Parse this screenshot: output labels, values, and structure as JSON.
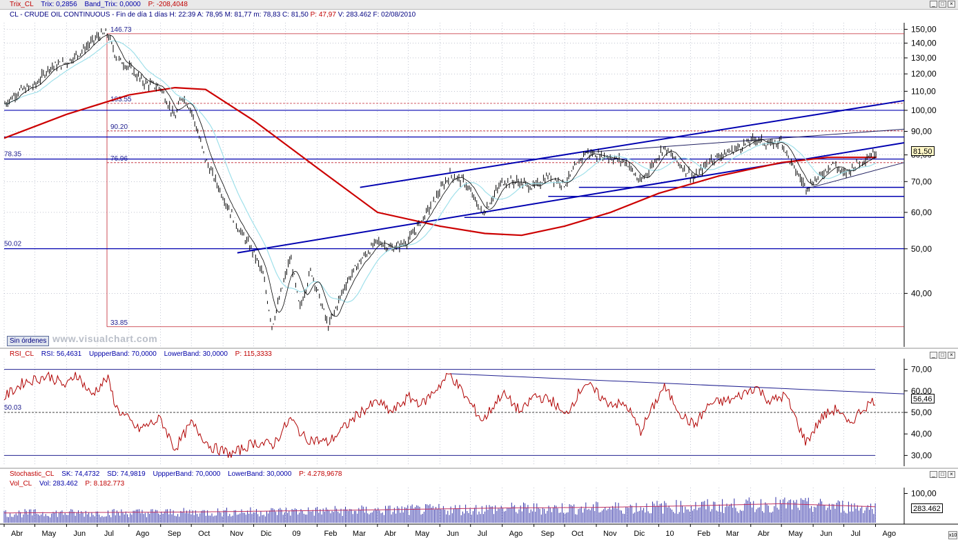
{
  "colors": {
    "price": "#000000",
    "trix_signal": "#9fe0ea",
    "long_ma": "#cc0000",
    "trend": "#0000b0",
    "rsi": "#b00000",
    "volume": "#3030a8",
    "support": "#0000b0",
    "level": "#c0202c"
  },
  "icons": {
    "scroll_up": "arrow-up-icon",
    "minimize": "minimize-icon",
    "restore": "restore-icon",
    "close": "close-icon",
    "zoom": "zoom-x10-icon"
  },
  "window_buttons": {
    "minimize": "_",
    "restore": "□",
    "close": "×"
  },
  "header_trix": {
    "name": "Trix_CL",
    "p1": "Trix: 0,2856",
    "p2": "Band_Trix: 0,0000",
    "p3": "P: -208,4048"
  },
  "subheader": {
    "symbol": "CL - CRUDE OIL CONTINUOUS - Fin de día 1 días",
    "h": "H: 22:39",
    "a": "A: 78,95",
    "m1": "M: 81,77",
    "m2": "m: 78,83",
    "c": "C: 81,50",
    "p": "P: 47,97",
    "v": "V: 283.462",
    "f": "F: 02/08/2010"
  },
  "header_rsi": {
    "name": "RSI_CL",
    "p1": "RSI: 56,4631",
    "p2": "UppperBand: 70,0000",
    "p3": "LowerBand: 30,0000",
    "p4": "P: 115,3333"
  },
  "header_stoch": {
    "name": "Stochastic_CL",
    "p1": "SK: 74,4732",
    "p2": "SD: 74,9819",
    "p3": "UppperBand: 70,0000",
    "p4": "LowerBand: 30,0000",
    "p5": "P: 4.278,9678"
  },
  "header_vol": {
    "name": "Vol_CL",
    "p1": "Vol: 283.462",
    "p2": "P: 8.182.773"
  },
  "sin_ordenes": "Sin órdenes",
  "watermark": "www.visualchart.com",
  "zoom_label": "x10",
  "chart_data": [
    {
      "type": "line",
      "title": "CL - CRUDE OIL CONTINUOUS",
      "y_scale": "log",
      "ylim": [
        30.6,
        155
      ],
      "y_ticks": [
        {
          "v": 150,
          "label": "150,00"
        },
        {
          "v": 140,
          "label": "140,00"
        },
        {
          "v": 130,
          "label": "130,00"
        },
        {
          "v": 120,
          "label": "120,00"
        },
        {
          "v": 110,
          "label": "110,00"
        },
        {
          "v": 100,
          "label": "100,00"
        },
        {
          "v": 90,
          "label": "90,00"
        },
        {
          "v": 80,
          "label": "80,00"
        },
        {
          "v": 70,
          "label": "70,00"
        },
        {
          "v": 60,
          "label": "60,00"
        },
        {
          "v": 50,
          "label": "50,00"
        },
        {
          "v": 40,
          "label": "40,00"
        }
      ],
      "last_price": {
        "value": 81.5,
        "label": "81,50"
      },
      "price_path": [
        [
          "2008-04-01",
          103
        ],
        [
          "2008-04-15",
          110
        ],
        [
          "2008-05-01",
          113
        ],
        [
          "2008-05-15",
          124
        ],
        [
          "2008-06-01",
          127
        ],
        [
          "2008-06-15",
          134
        ],
        [
          "2008-07-03",
          145.5
        ],
        [
          "2008-07-11",
          146.73
        ],
        [
          "2008-07-20",
          130
        ],
        [
          "2008-08-01",
          124
        ],
        [
          "2008-08-15",
          115
        ],
        [
          "2008-09-01",
          112
        ],
        [
          "2008-09-15",
          96
        ],
        [
          "2008-09-22",
          108
        ],
        [
          "2008-10-01",
          100
        ],
        [
          "2008-10-15",
          78
        ],
        [
          "2008-11-01",
          65
        ],
        [
          "2008-11-15",
          56
        ],
        [
          "2008-12-01",
          49
        ],
        [
          "2008-12-10",
          44
        ],
        [
          "2008-12-19",
          33.9
        ],
        [
          "2009-01-06",
          48
        ],
        [
          "2009-01-15",
          37
        ],
        [
          "2009-01-26",
          45
        ],
        [
          "2009-02-12",
          33.85
        ],
        [
          "2009-03-01",
          42
        ],
        [
          "2009-03-15",
          47
        ],
        [
          "2009-04-01",
          52
        ],
        [
          "2009-04-15",
          50
        ],
        [
          "2009-05-01",
          52
        ],
        [
          "2009-05-15",
          58
        ],
        [
          "2009-06-11",
          72.5
        ],
        [
          "2009-06-25",
          70
        ],
        [
          "2009-07-13",
          59.5
        ],
        [
          "2009-08-01",
          70
        ],
        [
          "2009-08-15",
          70
        ],
        [
          "2009-09-01",
          68
        ],
        [
          "2009-09-15",
          72
        ],
        [
          "2009-10-01",
          69
        ],
        [
          "2009-10-21",
          81
        ],
        [
          "2009-11-15",
          79
        ],
        [
          "2009-12-01",
          77
        ],
        [
          "2009-12-14",
          69.5
        ],
        [
          "2010-01-06",
          83.2
        ],
        [
          "2010-01-20",
          77
        ],
        [
          "2010-02-05",
          71
        ],
        [
          "2010-02-20",
          78
        ],
        [
          "2010-03-15",
          82
        ],
        [
          "2010-04-06",
          86.8
        ],
        [
          "2010-04-20",
          84
        ],
        [
          "2010-05-01",
          86
        ],
        [
          "2010-05-10",
          77
        ],
        [
          "2010-05-25",
          68
        ],
        [
          "2010-06-08",
          72
        ],
        [
          "2010-06-20",
          77
        ],
        [
          "2010-07-01",
          72.5
        ],
        [
          "2010-07-15",
          77
        ],
        [
          "2010-08-02",
          81.5
        ]
      ],
      "moving_average": [
        [
          "2008-04-01",
          87
        ],
        [
          "2008-06-01",
          98
        ],
        [
          "2008-08-01",
          108
        ],
        [
          "2008-09-15",
          112
        ],
        [
          "2008-10-15",
          111
        ],
        [
          "2008-12-01",
          95
        ],
        [
          "2009-02-01",
          75
        ],
        [
          "2009-04-01",
          60
        ],
        [
          "2009-06-01",
          56
        ],
        [
          "2009-07-15",
          54
        ],
        [
          "2009-08-20",
          53.5
        ],
        [
          "2009-10-01",
          56
        ],
        [
          "2009-11-15",
          60
        ],
        [
          "2010-01-01",
          66
        ],
        [
          "2010-03-01",
          72
        ],
        [
          "2010-05-01",
          77
        ],
        [
          "2010-06-15",
          79
        ],
        [
          "2010-08-02",
          79
        ]
      ],
      "channel_lines": [
        {
          "from": [
            "2008-11-15",
            49.0
          ],
          "to": [
            "2010-08-02",
            85.0
          ]
        },
        {
          "from": [
            "2009-03-15",
            68.0
          ],
          "to": [
            "2010-08-02",
            105.0
          ]
        },
        {
          "from": [
            "2009-10-21",
            81.0
          ],
          "to": [
            "2010-08-02",
            91.0
          ]
        },
        {
          "from": [
            "2010-05-25",
            67.5
          ],
          "to": [
            "2010-08-02",
            77.0
          ]
        }
      ],
      "horizontal_lines": [
        {
          "value": 100,
          "style": "solid"
        },
        {
          "value": 87.5,
          "style": "solid"
        },
        {
          "value": 78.35,
          "style": "solid"
        },
        {
          "value": 50.02,
          "style": "solid"
        },
        {
          "value": 58.5,
          "style": "solid"
        },
        {
          "value": 65,
          "style": "solid"
        },
        {
          "value": 68,
          "style": "solid"
        }
      ],
      "levels": [
        {
          "value": 146.73,
          "label": "146.73"
        },
        {
          "value": 103.55,
          "label": "103.55"
        },
        {
          "value": 90.2,
          "label": "90.20"
        },
        {
          "value": 76.96,
          "label": "76.96"
        },
        {
          "value": 33.85,
          "label": "33.85"
        }
      ],
      "side_labels": [
        {
          "value": 78.35,
          "label": "78.35"
        },
        {
          "value": 50.02,
          "label": "50.02"
        }
      ]
    },
    {
      "type": "line",
      "title": "RSI_CL",
      "ylim": [
        25,
        75
      ],
      "y_ticks": [
        {
          "v": 70,
          "label": "70,00"
        },
        {
          "v": 60,
          "label": "60,00"
        },
        {
          "v": 50,
          "label": "50,00"
        },
        {
          "v": 40,
          "label": "40,00"
        },
        {
          "v": 30,
          "label": "30,00"
        }
      ],
      "last_value": {
        "value": 56.46,
        "label": "56,46"
      },
      "side_label": {
        "value": 50.03,
        "label": "50.03"
      },
      "bands": [
        70,
        30
      ],
      "midline": 50,
      "trendline": {
        "from": [
          "2009-06-11",
          68.0
        ],
        "to": [
          "2010-08-02",
          58.6
        ]
      },
      "rsi_path": [
        [
          "2008-04-01",
          57
        ],
        [
          "2008-04-20",
          64
        ],
        [
          "2008-05-15",
          67
        ],
        [
          "2008-06-01",
          62
        ],
        [
          "2008-06-10",
          68.5
        ],
        [
          "2008-06-25",
          58
        ],
        [
          "2008-07-11",
          66
        ],
        [
          "2008-07-20",
          52
        ],
        [
          "2008-08-10",
          42
        ],
        [
          "2008-09-01",
          47
        ],
        [
          "2008-09-15",
          33
        ],
        [
          "2008-10-01",
          45
        ],
        [
          "2008-10-20",
          34
        ],
        [
          "2008-11-10",
          30.5
        ],
        [
          "2008-12-01",
          36
        ],
        [
          "2008-12-20",
          35
        ],
        [
          "2009-01-06",
          47
        ],
        [
          "2009-01-20",
          38
        ],
        [
          "2009-02-12",
          36
        ],
        [
          "2009-03-15",
          50
        ],
        [
          "2009-04-01",
          55
        ],
        [
          "2009-04-15",
          50
        ],
        [
          "2009-05-01",
          57
        ],
        [
          "2009-05-15",
          54
        ],
        [
          "2009-06-11",
          68
        ],
        [
          "2009-06-25",
          58
        ],
        [
          "2009-07-13",
          46
        ],
        [
          "2009-08-01",
          59
        ],
        [
          "2009-08-20",
          50
        ],
        [
          "2009-09-01",
          58
        ],
        [
          "2009-09-20",
          55
        ],
        [
          "2009-10-01",
          48
        ],
        [
          "2009-10-21",
          64
        ],
        [
          "2009-11-10",
          55
        ],
        [
          "2009-12-01",
          53
        ],
        [
          "2009-12-14",
          41
        ],
        [
          "2010-01-06",
          62
        ],
        [
          "2010-01-25",
          48
        ],
        [
          "2010-02-05",
          44
        ],
        [
          "2010-02-20",
          54
        ],
        [
          "2010-03-15",
          56
        ],
        [
          "2010-04-06",
          62
        ],
        [
          "2010-04-20",
          55
        ],
        [
          "2010-05-05",
          58
        ],
        [
          "2010-05-25",
          36
        ],
        [
          "2010-06-10",
          48
        ],
        [
          "2010-06-25",
          52
        ],
        [
          "2010-07-05",
          44
        ],
        [
          "2010-07-20",
          52
        ],
        [
          "2010-08-02",
          56.46
        ]
      ]
    },
    {
      "type": "bar",
      "title": "Vol_CL",
      "ylim": [
        0,
        120000
      ],
      "y_ticks": [
        {
          "v": 100000,
          "label": "100,00"
        }
      ],
      "last_value": {
        "value": 283462,
        "label": "283.462"
      },
      "volume_profile": [
        [
          "2008-04-01",
          32
        ],
        [
          "2008-10-01",
          35
        ],
        [
          "2009-04-01",
          42
        ],
        [
          "2009-08-01",
          48
        ],
        [
          "2009-11-01",
          50
        ],
        [
          "2010-02-01",
          55
        ],
        [
          "2010-05-01",
          62
        ],
        [
          "2010-08-02",
          52
        ]
      ]
    }
  ],
  "x_axis": [
    {
      "label": "Abr",
      "date": "2008-04-01"
    },
    {
      "label": "May",
      "date": "2008-05-01"
    },
    {
      "label": "Jun",
      "date": "2008-06-01"
    },
    {
      "label": "Jul",
      "date": "2008-07-01"
    },
    {
      "label": "Ago",
      "date": "2008-08-01"
    },
    {
      "label": "Sep",
      "date": "2008-09-01"
    },
    {
      "label": "Oct",
      "date": "2008-10-01"
    },
    {
      "label": "Nov",
      "date": "2008-11-01"
    },
    {
      "label": "Dic",
      "date": "2008-12-01"
    },
    {
      "label": "09",
      "date": "2009-01-01"
    },
    {
      "label": "Feb",
      "date": "2009-02-01"
    },
    {
      "label": "Mar",
      "date": "2009-03-01"
    },
    {
      "label": "Abr",
      "date": "2009-04-01"
    },
    {
      "label": "May",
      "date": "2009-05-01"
    },
    {
      "label": "Jun",
      "date": "2009-06-01"
    },
    {
      "label": "Jul",
      "date": "2009-07-01"
    },
    {
      "label": "Ago",
      "date": "2009-08-01"
    },
    {
      "label": "Sep",
      "date": "2009-09-01"
    },
    {
      "label": "Oct",
      "date": "2009-10-01"
    },
    {
      "label": "Nov",
      "date": "2009-11-01"
    },
    {
      "label": "Dic",
      "date": "2009-12-01"
    },
    {
      "label": "10",
      "date": "2010-01-01"
    },
    {
      "label": "Feb",
      "date": "2010-02-01"
    },
    {
      "label": "Mar",
      "date": "2010-03-01"
    },
    {
      "label": "Abr",
      "date": "2010-04-01"
    },
    {
      "label": "May",
      "date": "2010-05-01"
    },
    {
      "label": "Jun",
      "date": "2010-06-01"
    },
    {
      "label": "Jul",
      "date": "2010-07-01"
    },
    {
      "label": "Ago",
      "date": "2010-08-01"
    }
  ]
}
